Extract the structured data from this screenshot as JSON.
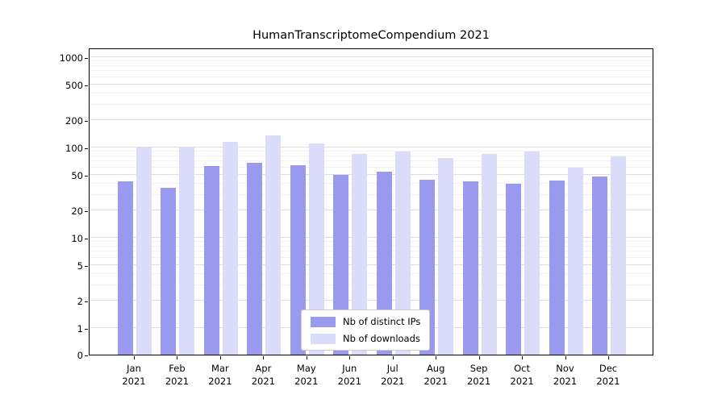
{
  "chart_data": {
    "type": "bar",
    "title": "HumanTranscriptomeCompendium 2021",
    "categories": [
      "Jan 2021",
      "Feb 2021",
      "Mar 2021",
      "Apr 2021",
      "May 2021",
      "Jun 2021",
      "Jul 2021",
      "Aug 2021",
      "Sep 2021",
      "Oct 2021",
      "Nov 2021",
      "Dec 2021"
    ],
    "series": [
      {
        "name": "Nb of distinct IPs",
        "color": "#9999ee",
        "values": [
          42,
          36,
          62,
          68,
          64,
          50,
          54,
          44,
          42,
          40,
          43,
          48
        ]
      },
      {
        "name": "Nb of downloads",
        "color": "#dbdbfa",
        "values": [
          100,
          103,
          115,
          135,
          110,
          85,
          90,
          76,
          84,
          90,
          60,
          80
        ]
      }
    ],
    "yscale": "symlog",
    "yticks": [
      0,
      1,
      2,
      5,
      10,
      20,
      50,
      100,
      200,
      500,
      1000
    ],
    "ylim": [
      0,
      1280
    ],
    "xlabel": "",
    "ylabel": "",
    "grid": true,
    "legend_position": "lower center inside axes"
  },
  "colors": {
    "background": "#ffffff",
    "axis": "#000000",
    "grid_major": "#dedede",
    "grid_minor": "#f2f2f2",
    "bars_ips": "#9999ee",
    "bars_downloads": "#dbdbfa"
  }
}
